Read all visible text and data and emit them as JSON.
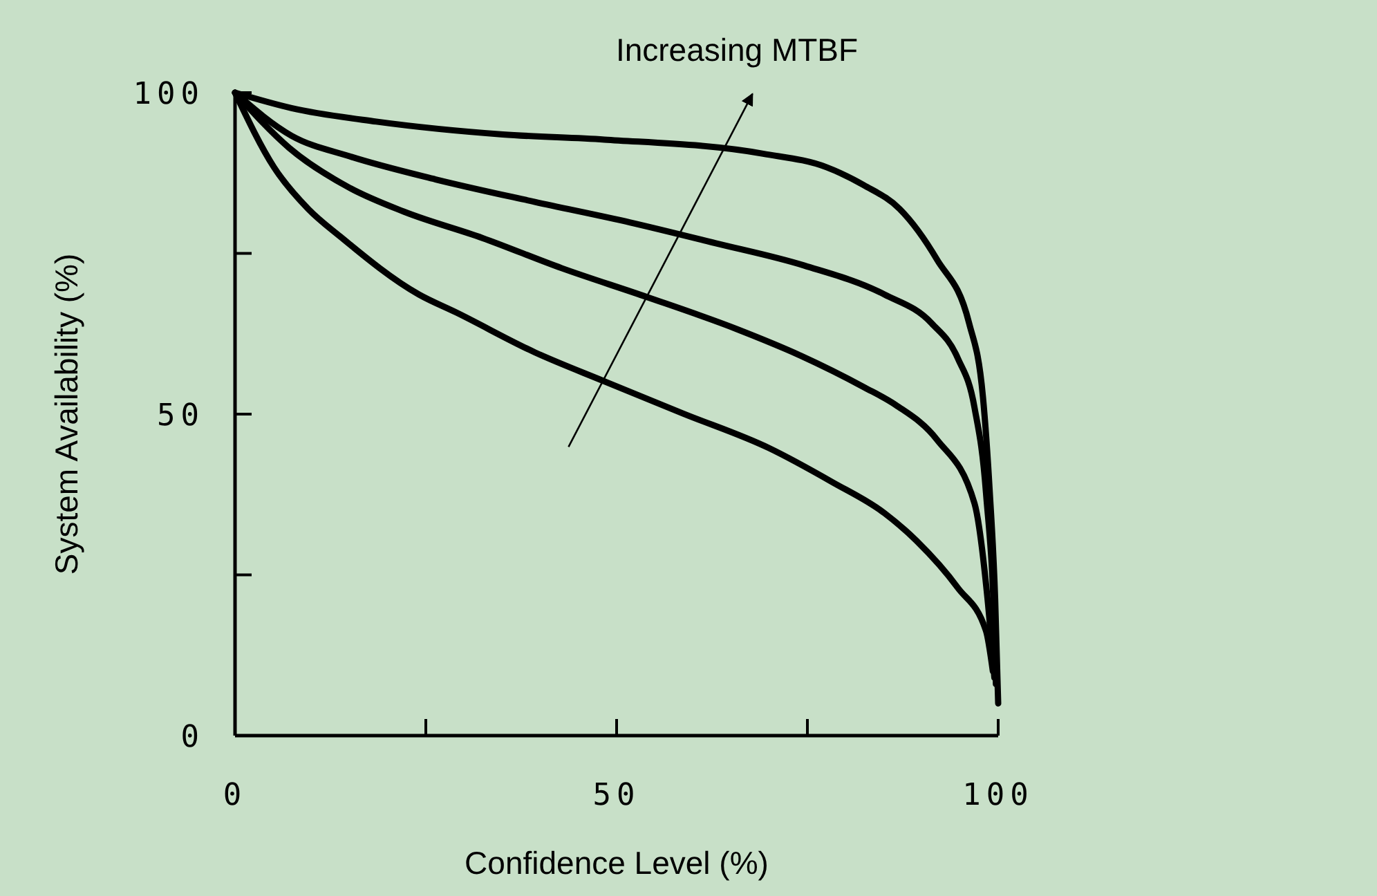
{
  "chart_data": {
    "type": "line",
    "xlabel": "Confidence Level (%)",
    "ylabel": "System Availability (%)",
    "annotations": [
      "Increasing MTBF"
    ],
    "xlim": [
      0,
      100
    ],
    "ylim": [
      0,
      100
    ],
    "xticks": [
      0,
      {
        "value": 25,
        "label": null
      },
      50,
      {
        "value": 75,
        "label": null
      },
      100
    ],
    "yticks": [
      0,
      {
        "value": 25,
        "label": null
      },
      50,
      {
        "value": 75,
        "label": null
      },
      100
    ],
    "grid": false,
    "marker": "none",
    "line_style": "solid",
    "series": [
      {
        "color": "#000000",
        "x": [
          0,
          5.1,
          9.6,
          13.8,
          24.1,
          29,
          39.3,
          48.4,
          58.7,
          70,
          78.3,
          85.1,
          89.3,
          94.7,
          98.4,
          99.3
        ],
        "values": [
          100,
          88.4,
          81.9,
          77.6,
          68.6,
          65.8,
          59.6,
          55.1,
          50.1,
          44.7,
          39.4,
          34.6,
          30.3,
          23,
          16.3,
          10
        ]
      },
      {
        "color": "#000000",
        "x": [
          0,
          7.1,
          15,
          22.1,
          32.4,
          42.8,
          54,
          65.8,
          74.1,
          82.4,
          86.6,
          92,
          96.9,
          98.6,
          99.5
        ],
        "values": [
          100,
          91.4,
          85.2,
          81.5,
          77.4,
          72.7,
          68.2,
          63.2,
          59.1,
          54.2,
          51.4,
          46,
          36.1,
          21.3,
          9
        ]
      },
      {
        "color": "#000000",
        "x": [
          0,
          7.4,
          15,
          26.3,
          39.3,
          51.8,
          62.9,
          74.6,
          85.1,
          91.3,
          94.7,
          96.9,
          98.4,
          99.6,
          99.7
        ],
        "values": [
          100,
          93.3,
          90.1,
          86.5,
          83,
          79.8,
          76.6,
          73.1,
          68.6,
          64.1,
          58.7,
          51,
          37.8,
          13.1,
          8
        ]
      },
      {
        "color": "#000000",
        "x": [
          0,
          7.4,
          18.5,
          35.1,
          48.4,
          69.2,
          77.5,
          82.4,
          87.1,
          92,
          96.2,
          98,
          98.9,
          99.6,
          100
        ],
        "values": [
          100,
          97.6,
          95.5,
          93.5,
          92.7,
          90.5,
          88.4,
          85.6,
          81.9,
          74,
          64.1,
          52.7,
          37.8,
          21.3,
          5
        ]
      }
    ]
  }
}
